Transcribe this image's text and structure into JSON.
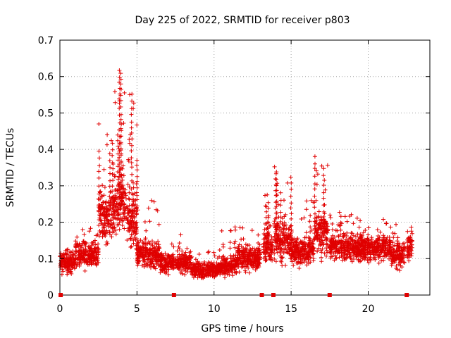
{
  "chart_data": {
    "type": "scatter",
    "title": "Day 225 of 2022, SRMTID for receiver p803",
    "xlabel": "GPS time / hours",
    "ylabel": "SRMTID / TECUs",
    "xlim": [
      0,
      24
    ],
    "ylim": [
      0,
      0.7
    ],
    "x_ticks": [
      0,
      5,
      10,
      15,
      20
    ],
    "x_tick_labels": [
      "0",
      "5",
      "10",
      "15",
      "20"
    ],
    "y_ticks": [
      0,
      0.1,
      0.2,
      0.3,
      0.4,
      0.5,
      0.6,
      0.7
    ],
    "y_tick_labels": [
      "0",
      "0.1",
      "0.2",
      "0.3",
      "0.4",
      "0.5",
      "0.6",
      "0.7"
    ],
    "grid": true,
    "marker": "+",
    "color": "#e00000",
    "outage_markers_x": [
      0.05,
      7.4,
      13.1,
      13.85,
      17.5,
      22.5
    ],
    "envelope": [
      {
        "x_start": 0.0,
        "x_end": 1.0,
        "base": 0.09,
        "spread": 0.04,
        "peak": 0.14
      },
      {
        "x_start": 1.0,
        "x_end": 2.5,
        "base": 0.11,
        "spread": 0.05,
        "peak": 0.19
      },
      {
        "x_start": 2.5,
        "x_end": 3.5,
        "base": 0.22,
        "spread": 0.1,
        "peak": 0.48
      },
      {
        "x_start": 3.5,
        "x_end": 4.3,
        "base": 0.25,
        "spread": 0.12,
        "peak": 0.65
      },
      {
        "x_start": 4.3,
        "x_end": 5.0,
        "base": 0.2,
        "spread": 0.1,
        "peak": 0.56
      },
      {
        "x_start": 5.0,
        "x_end": 6.5,
        "base": 0.11,
        "spread": 0.05,
        "peak": 0.26
      },
      {
        "x_start": 6.5,
        "x_end": 7.4,
        "base": 0.09,
        "spread": 0.04,
        "peak": 0.15
      },
      {
        "x_start": 7.5,
        "x_end": 8.5,
        "base": 0.09,
        "spread": 0.04,
        "peak": 0.18
      },
      {
        "x_start": 8.5,
        "x_end": 10.3,
        "base": 0.07,
        "spread": 0.03,
        "peak": 0.12
      },
      {
        "x_start": 10.3,
        "x_end": 11.5,
        "base": 0.08,
        "spread": 0.04,
        "peak": 0.2
      },
      {
        "x_start": 11.5,
        "x_end": 13.0,
        "base": 0.1,
        "spread": 0.05,
        "peak": 0.19
      },
      {
        "x_start": 13.2,
        "x_end": 13.8,
        "base": 0.13,
        "spread": 0.06,
        "peak": 0.33
      },
      {
        "x_start": 13.9,
        "x_end": 15.0,
        "base": 0.15,
        "spread": 0.08,
        "peak": 0.37
      },
      {
        "x_start": 15.0,
        "x_end": 16.5,
        "base": 0.12,
        "spread": 0.05,
        "peak": 0.29
      },
      {
        "x_start": 16.5,
        "x_end": 17.4,
        "base": 0.17,
        "spread": 0.09,
        "peak": 0.39
      },
      {
        "x_start": 17.5,
        "x_end": 19.5,
        "base": 0.13,
        "spread": 0.05,
        "peak": 0.23
      },
      {
        "x_start": 19.5,
        "x_end": 21.5,
        "base": 0.13,
        "spread": 0.05,
        "peak": 0.21
      },
      {
        "x_start": 21.5,
        "x_end": 22.4,
        "base": 0.11,
        "spread": 0.05,
        "peak": 0.21
      },
      {
        "x_start": 22.5,
        "x_end": 22.85,
        "base": 0.13,
        "spread": 0.05,
        "peak": 0.19
      }
    ]
  }
}
